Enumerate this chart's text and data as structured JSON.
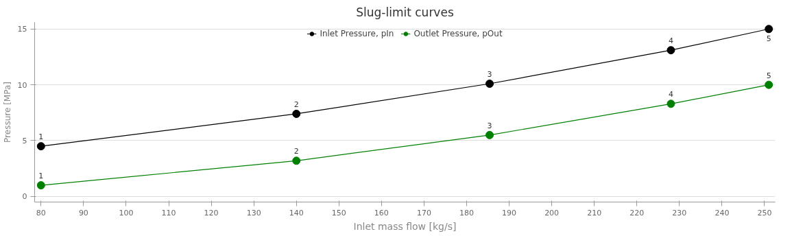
{
  "chart_data": {
    "type": "line",
    "title": "Slug-limit curves",
    "xlabel": "Inlet mass flow [kg/s]",
    "ylabel": "Pressure [MPa]",
    "x": [
      80,
      140,
      185.4,
      228,
      251
    ],
    "series": [
      {
        "name": "Inlet Pressure, pIn",
        "color": "#000000",
        "values": [
          4.5,
          7.4,
          10.1,
          13.1,
          15
        ]
      },
      {
        "name": "Outlet Pressure, pOut",
        "color": "#008000",
        "values": [
          1.0,
          3.2,
          5.5,
          8.3,
          10
        ]
      }
    ],
    "annotations": [
      {
        "text": "1",
        "x": 80,
        "y": 4.5
      },
      {
        "text": "2",
        "x": 140,
        "y": 7.4
      },
      {
        "text": "3",
        "x": 185.4,
        "y": 10.1
      },
      {
        "text": "4",
        "x": 228,
        "y": 13.1
      },
      {
        "text": "5",
        "x": 251,
        "y": 15
      },
      {
        "text": "1",
        "x": 80,
        "y": 1.0
      },
      {
        "text": "2",
        "x": 140,
        "y": 3.2
      },
      {
        "text": "3",
        "x": 185.4,
        "y": 5.5
      },
      {
        "text": "4",
        "x": 228,
        "y": 8.3
      },
      {
        "text": "5",
        "x": 251,
        "y": 10
      }
    ],
    "xlim": [
      78.5,
      252.5
    ],
    "xticks": [
      80,
      90,
      100,
      110,
      120,
      130,
      140,
      150,
      160,
      170,
      180,
      190,
      200,
      210,
      220,
      230,
      240,
      250
    ],
    "ylim": [
      -0.5,
      15.6
    ],
    "yticks": [
      0,
      5,
      10,
      15
    ],
    "grid": "y",
    "legend": "top",
    "marker": "circle",
    "line_style": "solid"
  }
}
